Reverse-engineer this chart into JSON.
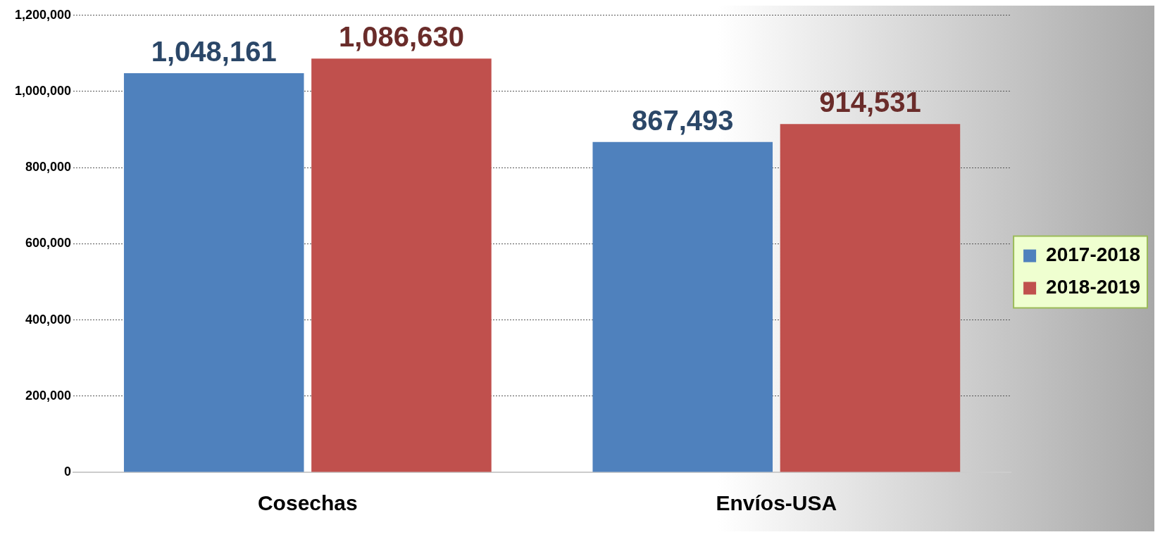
{
  "chart_data": {
    "type": "bar",
    "categories": [
      "Cosechas",
      "Envíos-USA"
    ],
    "series": [
      {
        "name": "2017-2018",
        "color": "#4f81bd",
        "values": [
          1048161,
          867493
        ],
        "value_labels": [
          "1,048,161",
          "867,493"
        ]
      },
      {
        "name": "2018-2019",
        "color": "#c0504d",
        "values": [
          1086630,
          914531
        ],
        "value_labels": [
          "1,086,630",
          "914,531"
        ]
      }
    ],
    "ylim": [
      0,
      1200000
    ],
    "yticks": [
      {
        "value": 0,
        "label": "0"
      },
      {
        "value": 200000,
        "label": "200,000"
      },
      {
        "value": 400000,
        "label": "400,000"
      },
      {
        "value": 600000,
        "label": "600,000"
      },
      {
        "value": 800000,
        "label": "800,000"
      },
      {
        "value": 1000000,
        "label": "1,000,000"
      },
      {
        "value": 1200000,
        "label": "1,200,000"
      }
    ],
    "grid": "y",
    "legend": "right"
  }
}
